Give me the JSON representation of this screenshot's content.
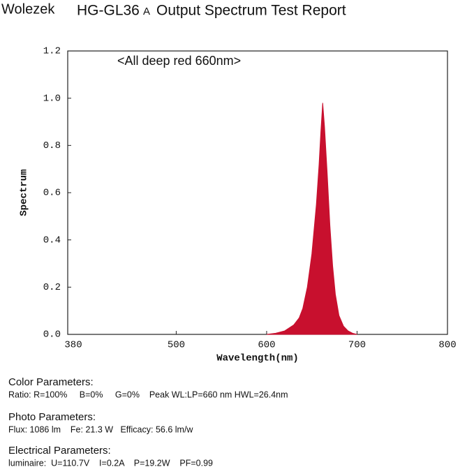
{
  "header": {
    "brand": "Wolezek",
    "model": "HG-GL36",
    "model_suffix": "A",
    "title": "Output Spectrum Test Report"
  },
  "chart_data": {
    "type": "area",
    "annotation": "<All deep red 660nm>",
    "xlabel": "Wavelength(nm)",
    "ylabel": "Spectrum",
    "x": [
      600,
      610,
      620,
      630,
      636,
      640,
      645,
      650,
      655,
      658,
      660,
      662,
      664,
      667,
      670,
      673,
      676,
      680,
      685,
      690,
      695,
      700
    ],
    "values": [
      0,
      0.005,
      0.015,
      0.04,
      0.07,
      0.11,
      0.2,
      0.34,
      0.55,
      0.72,
      0.86,
      0.98,
      0.88,
      0.68,
      0.46,
      0.29,
      0.17,
      0.08,
      0.035,
      0.015,
      0.005,
      0
    ],
    "color": "#c8102e",
    "annotation_color": "#a3141c",
    "xlim": [
      380,
      800
    ],
    "xticks": [
      380,
      500,
      600,
      700,
      800
    ],
    "ylim": [
      0,
      1.2
    ],
    "yticks": [
      {
        "value": 0,
        "label": "0.0"
      },
      0.2,
      0.4,
      0.6,
      0.8,
      {
        "value": 1,
        "label": "1.0"
      },
      1.2
    ]
  },
  "parameters": [
    {
      "heading": "Color Parameters:",
      "line": "Ratio: R=100%     B=0%     G=0%    Peak WL:LP=660 nm HWL=26.4nm"
    },
    {
      "heading": "Photo Parameters:",
      "line": "Flux: 1086 lm    Fe: 21.3 W   Efficacy: 56.6 lm/w"
    },
    {
      "heading": "Electrical Parameters:",
      "line": "luminaire:  U=110.7V    I=0.2A    P=19.2W    PF=0.99"
    }
  ]
}
